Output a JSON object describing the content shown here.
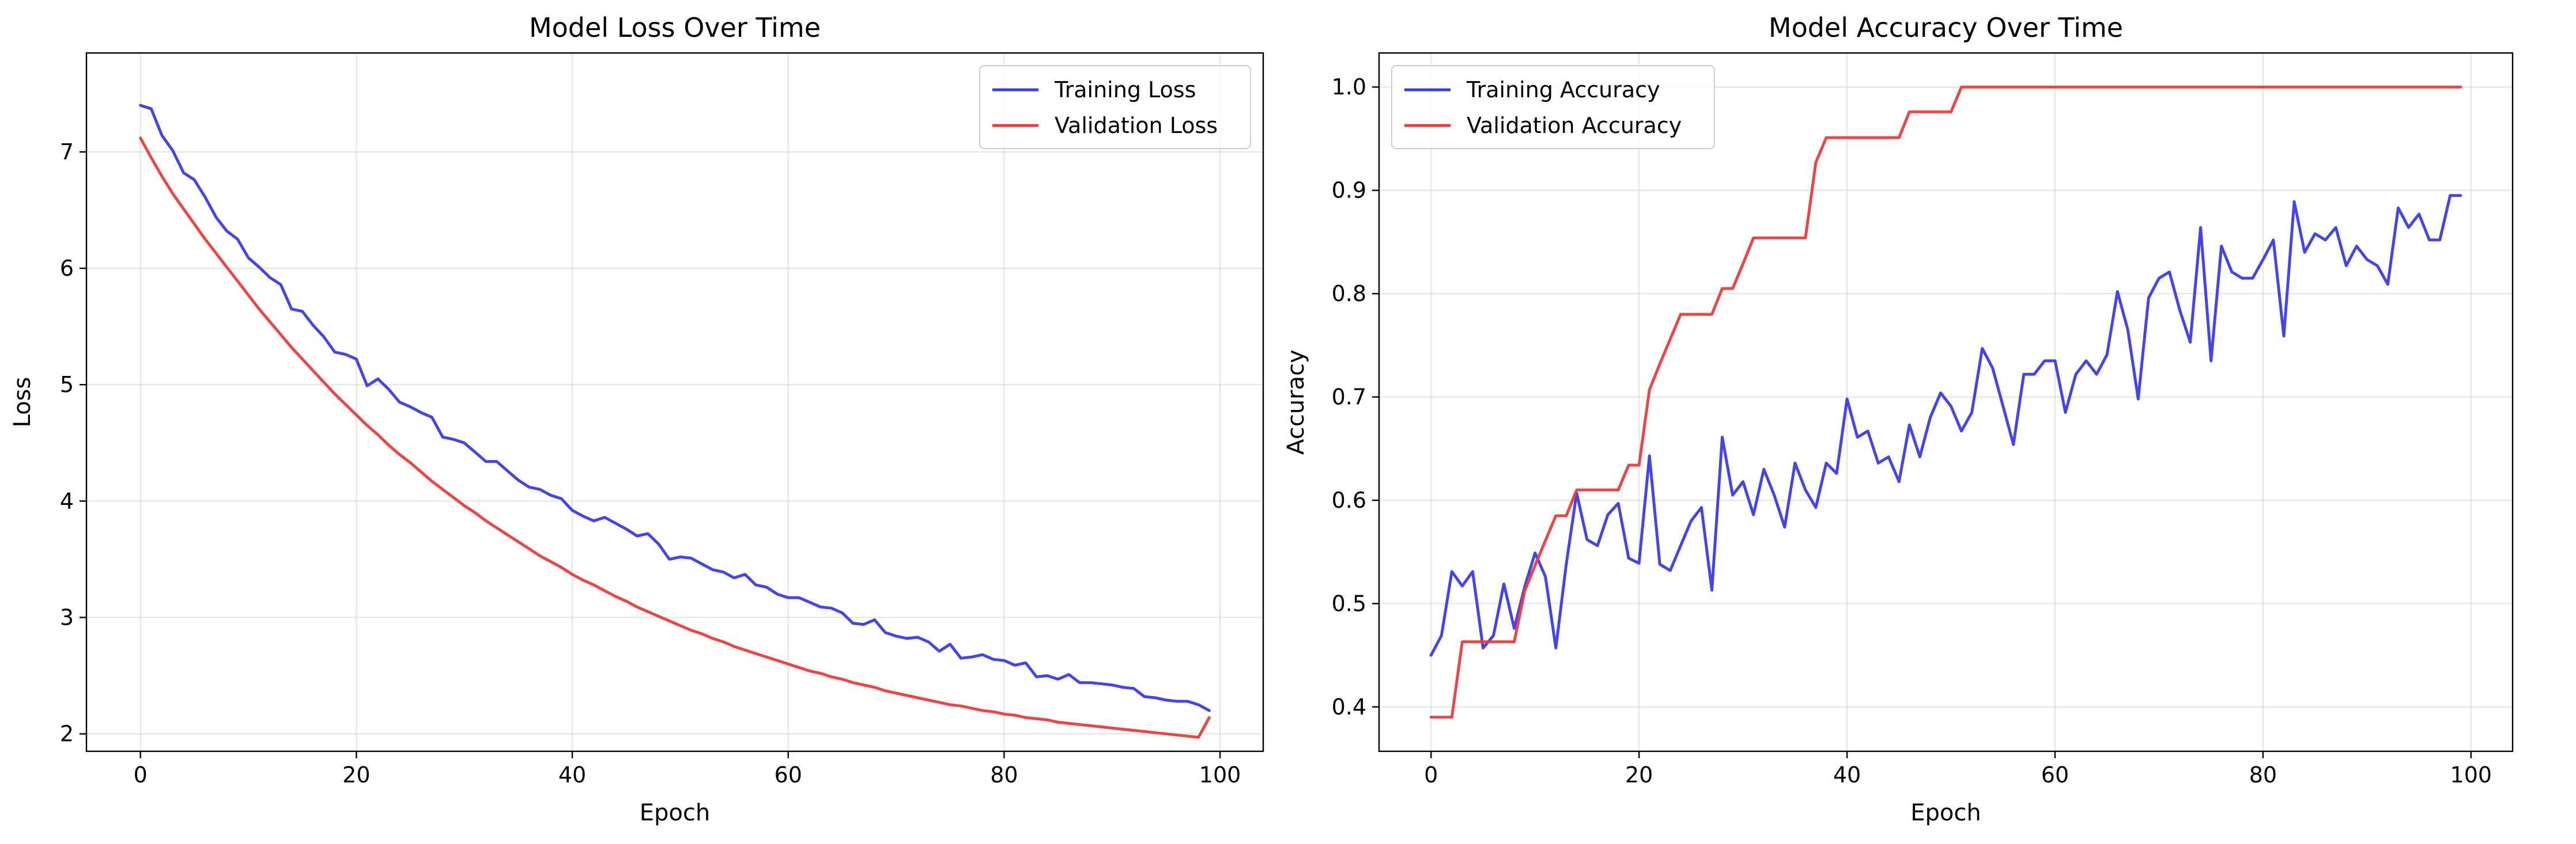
{
  "chart_data": [
    {
      "type": "line",
      "title": "Model Loss Over Time",
      "xlabel": "Epoch",
      "ylabel": "Loss",
      "xlim": [
        -5,
        104
      ],
      "ylim": [
        1.85,
        7.85
      ],
      "xticks": [
        0,
        20,
        40,
        60,
        80,
        100
      ],
      "yticks": [
        2,
        3,
        4,
        5,
        6,
        7
      ],
      "grid": true,
      "legend_position": "upper right",
      "x": [
        0,
        1,
        2,
        3,
        4,
        5,
        6,
        7,
        8,
        9,
        10,
        11,
        12,
        13,
        14,
        15,
        16,
        17,
        18,
        19,
        20,
        21,
        22,
        23,
        24,
        25,
        26,
        27,
        28,
        29,
        30,
        31,
        32,
        33,
        34,
        35,
        36,
        37,
        38,
        39,
        40,
        41,
        42,
        43,
        44,
        45,
        46,
        47,
        48,
        49,
        50,
        51,
        52,
        53,
        54,
        55,
        56,
        57,
        58,
        59,
        60,
        61,
        62,
        63,
        64,
        65,
        66,
        67,
        68,
        69,
        70,
        71,
        72,
        73,
        74,
        75,
        76,
        77,
        78,
        79,
        80,
        81,
        82,
        83,
        84,
        85,
        86,
        87,
        88,
        89,
        90,
        91,
        92,
        93,
        94,
        95,
        96,
        97,
        98,
        99
      ],
      "series": [
        {
          "name": "Training Loss",
          "color": "#3a3aee",
          "values": [
            7.4,
            7.37,
            7.14,
            7.01,
            6.82,
            6.76,
            6.61,
            6.44,
            6.32,
            6.25,
            6.09,
            6.01,
            5.92,
            5.86,
            5.65,
            5.63,
            5.51,
            5.41,
            5.28,
            5.26,
            5.22,
            4.99,
            5.05,
            4.96,
            4.85,
            4.81,
            4.76,
            4.72,
            4.55,
            4.53,
            4.5,
            4.42,
            4.34,
            4.34,
            4.26,
            4.18,
            4.12,
            4.1,
            4.05,
            4.02,
            3.92,
            3.87,
            3.83,
            3.86,
            3.81,
            3.76,
            3.7,
            3.72,
            3.63,
            3.5,
            3.52,
            3.51,
            3.46,
            3.41,
            3.39,
            3.34,
            3.37,
            3.28,
            3.26,
            3.2,
            3.17,
            3.17,
            3.13,
            3.09,
            3.08,
            3.04,
            2.95,
            2.94,
            2.98,
            2.87,
            2.84,
            2.82,
            2.83,
            2.79,
            2.71,
            2.77,
            2.65,
            2.66,
            2.68,
            2.64,
            2.63,
            2.59,
            2.61,
            2.49,
            2.5,
            2.47,
            2.51,
            2.44,
            2.44,
            2.43,
            2.42,
            2.4,
            2.39,
            2.32,
            2.31,
            2.29,
            2.28,
            2.28,
            2.25,
            2.2
          ]
        },
        {
          "name": "Validation Loss",
          "color": "#ee3a3a",
          "values": [
            7.12,
            6.95,
            6.79,
            6.64,
            6.51,
            6.38,
            6.25,
            6.13,
            6.01,
            5.89,
            5.77,
            5.65,
            5.54,
            5.43,
            5.32,
            5.22,
            5.12,
            5.02,
            4.92,
            4.83,
            4.74,
            4.65,
            4.57,
            4.48,
            4.4,
            4.33,
            4.25,
            4.17,
            4.1,
            4.03,
            3.96,
            3.9,
            3.83,
            3.77,
            3.71,
            3.65,
            3.59,
            3.53,
            3.48,
            3.43,
            3.37,
            3.32,
            3.28,
            3.23,
            3.18,
            3.14,
            3.09,
            3.05,
            3.01,
            2.97,
            2.93,
            2.89,
            2.86,
            2.82,
            2.79,
            2.75,
            2.72,
            2.69,
            2.66,
            2.63,
            2.6,
            2.57,
            2.54,
            2.52,
            2.49,
            2.47,
            2.44,
            2.42,
            2.4,
            2.37,
            2.35,
            2.33,
            2.31,
            2.29,
            2.27,
            2.25,
            2.24,
            2.22,
            2.2,
            2.19,
            2.17,
            2.16,
            2.14,
            2.13,
            2.12,
            2.1,
            2.09,
            2.08,
            2.07,
            2.06,
            2.05,
            2.04,
            2.03,
            2.02,
            2.01,
            2.0,
            1.99,
            1.98,
            1.97,
            2.14
          ]
        }
      ]
    },
    {
      "type": "line",
      "title": "Model Accuracy Over Time",
      "xlabel": "Epoch",
      "ylabel": "Accuracy",
      "xlim": [
        -5,
        104
      ],
      "ylim": [
        0.357,
        1.033
      ],
      "xticks": [
        0,
        20,
        40,
        60,
        80,
        100
      ],
      "yticks": [
        0.4,
        0.5,
        0.6,
        0.7,
        0.8,
        0.9,
        1.0
      ],
      "grid": true,
      "legend_position": "upper left",
      "x": [
        0,
        1,
        2,
        3,
        4,
        5,
        6,
        7,
        8,
        9,
        10,
        11,
        12,
        13,
        14,
        15,
        16,
        17,
        18,
        19,
        20,
        21,
        22,
        23,
        24,
        25,
        26,
        27,
        28,
        29,
        30,
        31,
        32,
        33,
        34,
        35,
        36,
        37,
        38,
        39,
        40,
        41,
        42,
        43,
        44,
        45,
        46,
        47,
        48,
        49,
        50,
        51,
        52,
        53,
        54,
        55,
        56,
        57,
        58,
        59,
        60,
        61,
        62,
        63,
        64,
        65,
        66,
        67,
        68,
        69,
        70,
        71,
        72,
        73,
        74,
        75,
        76,
        77,
        78,
        79,
        80,
        81,
        82,
        83,
        84,
        85,
        86,
        87,
        88,
        89,
        90,
        91,
        92,
        93,
        94,
        95,
        96,
        97,
        98,
        99
      ],
      "series": [
        {
          "name": "Training Accuracy",
          "color": "#3a3aee",
          "values": [
            0.45,
            0.469,
            0.531,
            0.517,
            0.531,
            0.457,
            0.469,
            0.519,
            0.476,
            0.516,
            0.549,
            0.526,
            0.457,
            0.538,
            0.607,
            0.562,
            0.556,
            0.586,
            0.597,
            0.544,
            0.539,
            0.643,
            0.538,
            0.532,
            0.556,
            0.58,
            0.593,
            0.513,
            0.661,
            0.605,
            0.618,
            0.586,
            0.63,
            0.605,
            0.574,
            0.636,
            0.61,
            0.593,
            0.636,
            0.626,
            0.698,
            0.661,
            0.667,
            0.636,
            0.642,
            0.618,
            0.673,
            0.642,
            0.68,
            0.704,
            0.691,
            0.667,
            0.685,
            0.747,
            0.728,
            0.691,
            0.654,
            0.722,
            0.722,
            0.735,
            0.735,
            0.685,
            0.722,
            0.735,
            0.722,
            0.741,
            0.802,
            0.765,
            0.698,
            0.796,
            0.815,
            0.821,
            0.784,
            0.753,
            0.864,
            0.735,
            0.846,
            0.821,
            0.815,
            0.815,
            0.833,
            0.852,
            0.759,
            0.889,
            0.84,
            0.858,
            0.852,
            0.864,
            0.827,
            0.846,
            0.833,
            0.827,
            0.809,
            0.883,
            0.864,
            0.877,
            0.852,
            0.852,
            0.895,
            0.895
          ]
        },
        {
          "name": "Validation Accuracy",
          "color": "#ee3a3a",
          "values": [
            0.39,
            0.39,
            0.39,
            0.463,
            0.463,
            0.463,
            0.463,
            0.463,
            0.463,
            0.512,
            0.537,
            0.561,
            0.585,
            0.585,
            0.61,
            0.61,
            0.61,
            0.61,
            0.61,
            0.634,
            0.634,
            0.707,
            0.732,
            0.756,
            0.78,
            0.78,
            0.78,
            0.78,
            0.805,
            0.805,
            0.829,
            0.854,
            0.854,
            0.854,
            0.854,
            0.854,
            0.854,
            0.927,
            0.951,
            0.951,
            0.951,
            0.951,
            0.951,
            0.951,
            0.951,
            0.951,
            0.976,
            0.976,
            0.976,
            0.976,
            0.976,
            1.0,
            1.0,
            1.0,
            1.0,
            1.0,
            1.0,
            1.0,
            1.0,
            1.0,
            1.0,
            1.0,
            1.0,
            1.0,
            1.0,
            1.0,
            1.0,
            1.0,
            1.0,
            1.0,
            1.0,
            1.0,
            1.0,
            1.0,
            1.0,
            1.0,
            1.0,
            1.0,
            1.0,
            1.0,
            1.0,
            1.0,
            1.0,
            1.0,
            1.0,
            1.0,
            1.0,
            1.0,
            1.0,
            1.0,
            1.0,
            1.0,
            1.0,
            1.0,
            1.0,
            1.0,
            1.0,
            1.0,
            1.0,
            1.0
          ]
        }
      ]
    }
  ]
}
